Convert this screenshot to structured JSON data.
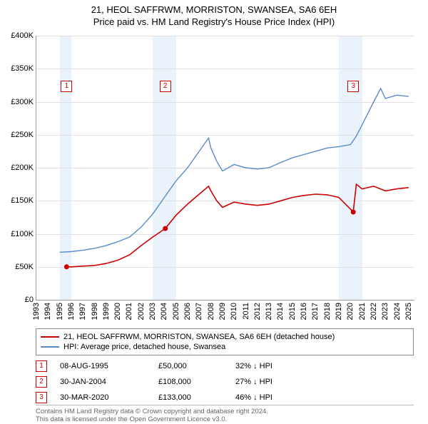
{
  "title_main": "21, HEOL SAFFRWM, MORRISTON, SWANSEA, SA6 6EH",
  "title_sub": "Price paid vs. HM Land Registry's House Price Index (HPI)",
  "title_fontsize": 13,
  "chart": {
    "type": "line",
    "background_color": "#ffffff",
    "grid_color": "#e0e0e0",
    "axis_color": "#999999",
    "label_fontsize": 11,
    "y": {
      "min": 0,
      "max": 400000,
      "step": 50000,
      "ticks": [
        "£0",
        "£50K",
        "£100K",
        "£150K",
        "£200K",
        "£250K",
        "£300K",
        "£350K",
        "£400K"
      ]
    },
    "x": {
      "min": 1993,
      "max": 2025.5,
      "ticks": [
        1993,
        1994,
        1995,
        1996,
        1997,
        1998,
        1999,
        2000,
        2001,
        2002,
        2003,
        2004,
        2005,
        2006,
        2007,
        2008,
        2009,
        2010,
        2011,
        2012,
        2013,
        2014,
        2015,
        2016,
        2017,
        2018,
        2019,
        2020,
        2021,
        2022,
        2023,
        2024,
        2025
      ]
    },
    "shaded_bands": [
      {
        "start": 1995,
        "end": 1996,
        "color": "#eaf2fb"
      },
      {
        "start": 2003,
        "end": 2005,
        "color": "#eaf2fb"
      },
      {
        "start": 2019,
        "end": 2021,
        "color": "#eaf2fb"
      }
    ],
    "series": [
      {
        "name": "price_paid",
        "label": "21, HEOL SAFFRWM, MORRISTON, SWANSEA, SA6 6EH (detached house)",
        "color": "#cc0000",
        "line_width": 1.6,
        "data": [
          [
            1995.6,
            50000
          ],
          [
            1996,
            50000
          ],
          [
            1997,
            51000
          ],
          [
            1998,
            52000
          ],
          [
            1999,
            55000
          ],
          [
            2000,
            60000
          ],
          [
            2001,
            68000
          ],
          [
            2002,
            82000
          ],
          [
            2003,
            95000
          ],
          [
            2004.08,
            108000
          ],
          [
            2005,
            128000
          ],
          [
            2006,
            145000
          ],
          [
            2007,
            160000
          ],
          [
            2007.8,
            172000
          ],
          [
            2008,
            165000
          ],
          [
            2008.5,
            150000
          ],
          [
            2009,
            140000
          ],
          [
            2010,
            148000
          ],
          [
            2011,
            145000
          ],
          [
            2012,
            143000
          ],
          [
            2013,
            145000
          ],
          [
            2014,
            150000
          ],
          [
            2015,
            155000
          ],
          [
            2016,
            158000
          ],
          [
            2017,
            160000
          ],
          [
            2018,
            159000
          ],
          [
            2019,
            155000
          ],
          [
            2020.24,
            133000
          ],
          [
            2020.5,
            175000
          ],
          [
            2021,
            168000
          ],
          [
            2022,
            172000
          ],
          [
            2023,
            165000
          ],
          [
            2024,
            168000
          ],
          [
            2025,
            170000
          ]
        ],
        "marker_points": [
          {
            "x": 1995.6,
            "y": 50000
          },
          {
            "x": 2004.08,
            "y": 108000
          },
          {
            "x": 2020.24,
            "y": 133000
          }
        ]
      },
      {
        "name": "hpi",
        "label": "HPI: Average price, detached house, Swansea",
        "color": "#5a8bc9",
        "line_width": 1.4,
        "data": [
          [
            1995,
            72000
          ],
          [
            1996,
            73000
          ],
          [
            1997,
            75000
          ],
          [
            1998,
            78000
          ],
          [
            1999,
            82000
          ],
          [
            2000,
            88000
          ],
          [
            2001,
            95000
          ],
          [
            2002,
            110000
          ],
          [
            2003,
            130000
          ],
          [
            2004,
            155000
          ],
          [
            2005,
            180000
          ],
          [
            2006,
            200000
          ],
          [
            2007,
            225000
          ],
          [
            2007.8,
            245000
          ],
          [
            2008,
            230000
          ],
          [
            2008.5,
            210000
          ],
          [
            2009,
            195000
          ],
          [
            2010,
            205000
          ],
          [
            2011,
            200000
          ],
          [
            2012,
            198000
          ],
          [
            2013,
            200000
          ],
          [
            2014,
            208000
          ],
          [
            2015,
            215000
          ],
          [
            2016,
            220000
          ],
          [
            2017,
            225000
          ],
          [
            2018,
            230000
          ],
          [
            2019,
            232000
          ],
          [
            2020,
            235000
          ],
          [
            2020.5,
            248000
          ],
          [
            2021,
            265000
          ],
          [
            2022,
            300000
          ],
          [
            2022.6,
            320000
          ],
          [
            2023,
            305000
          ],
          [
            2024,
            310000
          ],
          [
            2025,
            308000
          ]
        ]
      }
    ],
    "markers": [
      {
        "n": "1",
        "x": 1995.6,
        "box_y": 63
      },
      {
        "n": "2",
        "x": 2004.08,
        "box_y": 63
      },
      {
        "n": "3",
        "x": 2020.24,
        "box_y": 63
      }
    ]
  },
  "legend": {
    "border_color": "#888888",
    "items": [
      {
        "color": "#cc0000",
        "label": "21, HEOL SAFFRWM, MORRISTON, SWANSEA, SA6 6EH (detached house)"
      },
      {
        "color": "#5a8bc9",
        "label": "HPI: Average price, detached house, Swansea"
      }
    ]
  },
  "annotations": [
    {
      "n": "1",
      "date": "08-AUG-1995",
      "price": "£50,000",
      "pct": "32% ↓ HPI"
    },
    {
      "n": "2",
      "date": "30-JAN-2004",
      "price": "£108,000",
      "pct": "27% ↓ HPI"
    },
    {
      "n": "3",
      "date": "30-MAR-2020",
      "price": "£133,000",
      "pct": "46% ↓ HPI"
    }
  ],
  "footer": {
    "line1": "Contains HM Land Registry data © Crown copyright and database right 2024.",
    "line2": "This data is licensed under the Open Government Licence v3.0.",
    "color": "#666666",
    "fontsize": 9.5
  }
}
